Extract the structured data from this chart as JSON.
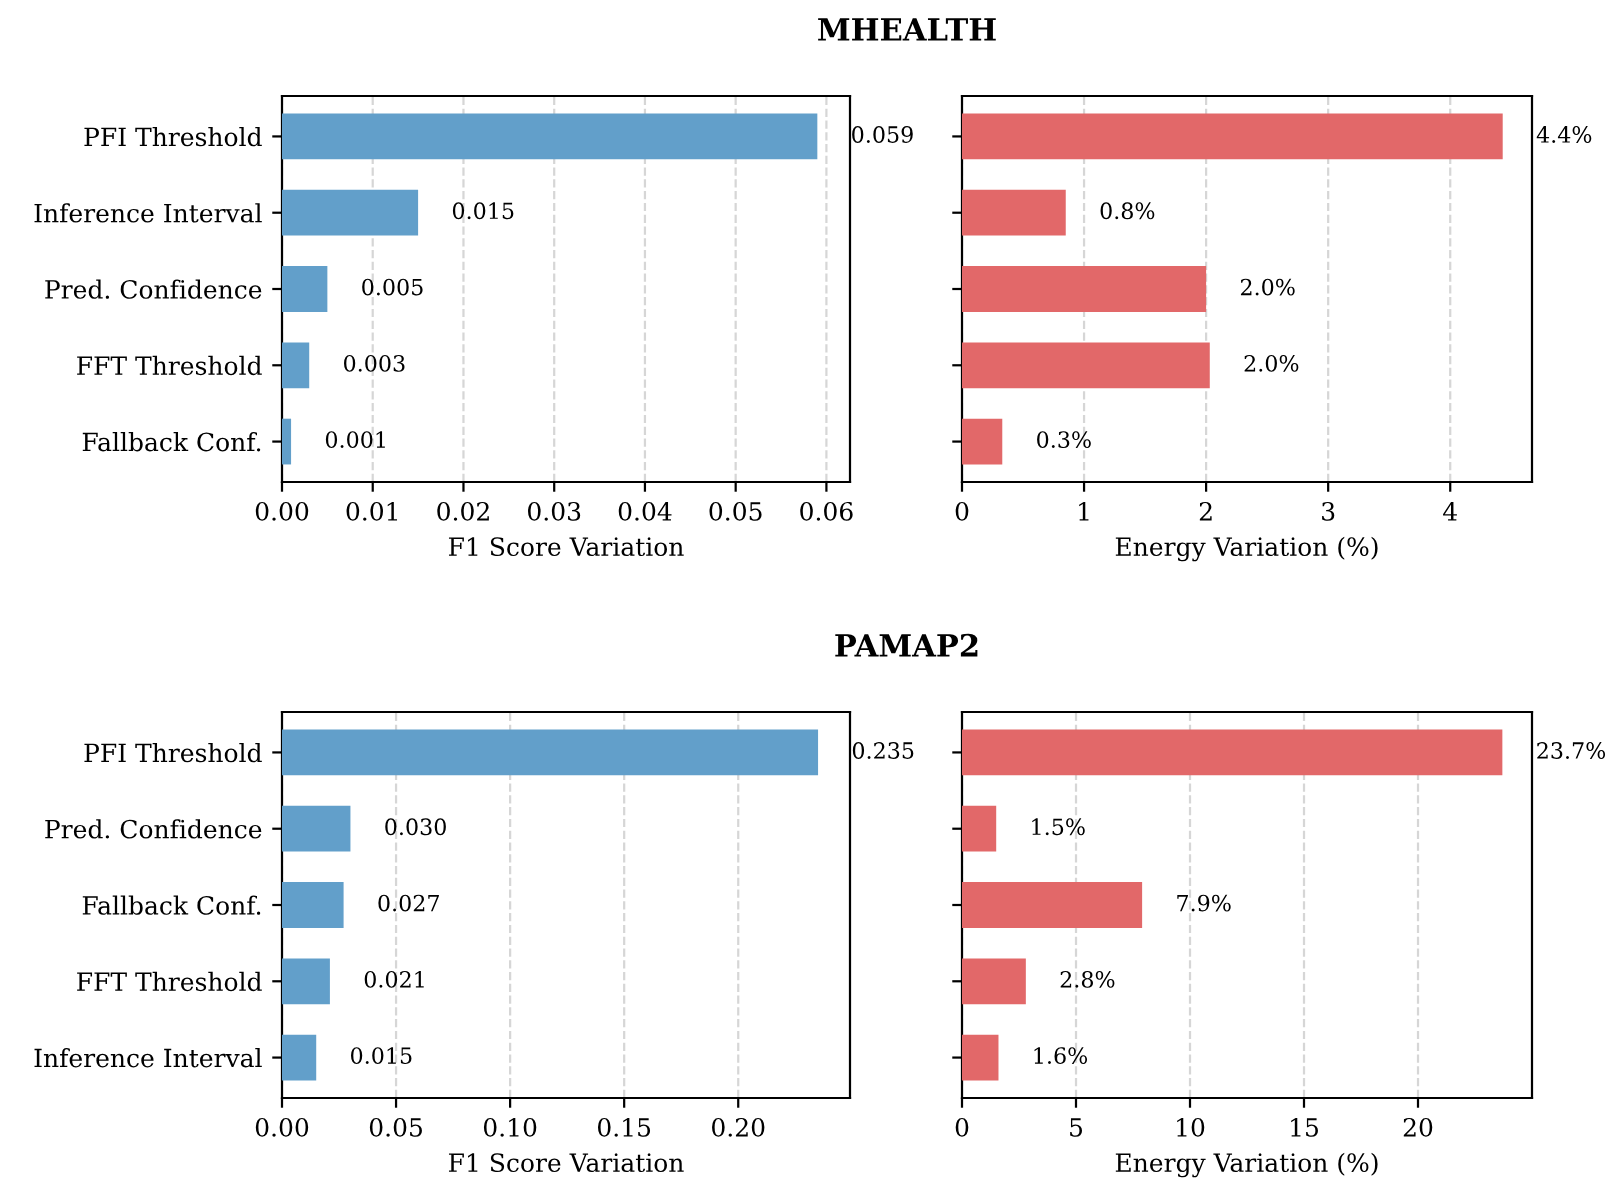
{
  "chart_data": [
    {
      "type": "bar",
      "orientation": "horizontal",
      "title": "MHEALTH",
      "xlabel": "F1 Score Variation",
      "categories": [
        "PFI Threshold",
        "Inference Interval",
        "Pred. Confidence",
        "FFT Threshold",
        "Fallback Conf."
      ],
      "values": [
        0.059,
        0.015,
        0.005,
        0.003,
        0.001
      ],
      "value_labels": [
        "0.059",
        "0.015",
        "0.005",
        "0.003",
        "0.001"
      ],
      "color": "#629fca",
      "xlim": [
        0,
        0.0626
      ],
      "xticks": [
        {
          "value": 0,
          "label": "0.00"
        },
        {
          "value": 0.01,
          "label": "0.01"
        },
        {
          "value": 0.02,
          "label": "0.02"
        },
        {
          "value": 0.03,
          "label": "0.03"
        },
        {
          "value": 0.04,
          "label": "0.04"
        },
        {
          "value": 0.05,
          "label": "0.05"
        },
        {
          "value": 0.06,
          "label": "0.06"
        }
      ],
      "grid": "x"
    },
    {
      "type": "bar",
      "orientation": "horizontal",
      "xlabel": "Energy Variation (%)",
      "categories": [
        null,
        null,
        null,
        null,
        null
      ],
      "values": [
        4.43,
        0.85,
        2.0,
        2.03,
        0.33
      ],
      "value_labels": [
        "4.4%",
        "0.8%",
        "2.0%",
        "2.0%",
        "0.3%"
      ],
      "color": "#e26869",
      "xlim": [
        0,
        4.67
      ],
      "xticks": [
        0,
        1,
        2,
        3,
        4
      ],
      "grid": "x",
      "tick_labels": "x"
    },
    {
      "type": "bar",
      "orientation": "horizontal",
      "title": "PAMAP2",
      "xlabel": "F1 Score Variation",
      "categories": [
        "PFI Threshold",
        "Pred. Confidence",
        "Fallback Conf.",
        "FFT Threshold",
        "Inference Interval"
      ],
      "values": [
        0.235,
        0.03,
        0.027,
        0.021,
        0.015
      ],
      "value_labels": [
        "0.235",
        "0.030",
        "0.027",
        "0.021",
        "0.015"
      ],
      "color": "#629fca",
      "xlim": [
        0,
        0.249
      ],
      "xticks": [
        {
          "value": 0,
          "label": "0.00"
        },
        {
          "value": 0.05,
          "label": "0.05"
        },
        {
          "value": 0.1,
          "label": "0.10"
        },
        {
          "value": 0.15,
          "label": "0.15"
        },
        {
          "value": 0.2,
          "label": "0.20"
        }
      ],
      "grid": "x"
    },
    {
      "type": "bar",
      "orientation": "horizontal",
      "xlabel": "Energy Variation (%)",
      "categories": [
        null,
        null,
        null,
        null,
        null
      ],
      "values": [
        23.7,
        1.5,
        7.9,
        2.8,
        1.6
      ],
      "value_labels": [
        "23.7%",
        "1.5%",
        "7.9%",
        "2.8%",
        "1.6%"
      ],
      "color": "#e26869",
      "xlim": [
        0,
        25.0
      ],
      "xticks": [
        0,
        5,
        10,
        15,
        20
      ],
      "grid": "x",
      "tick_labels": "x"
    }
  ]
}
